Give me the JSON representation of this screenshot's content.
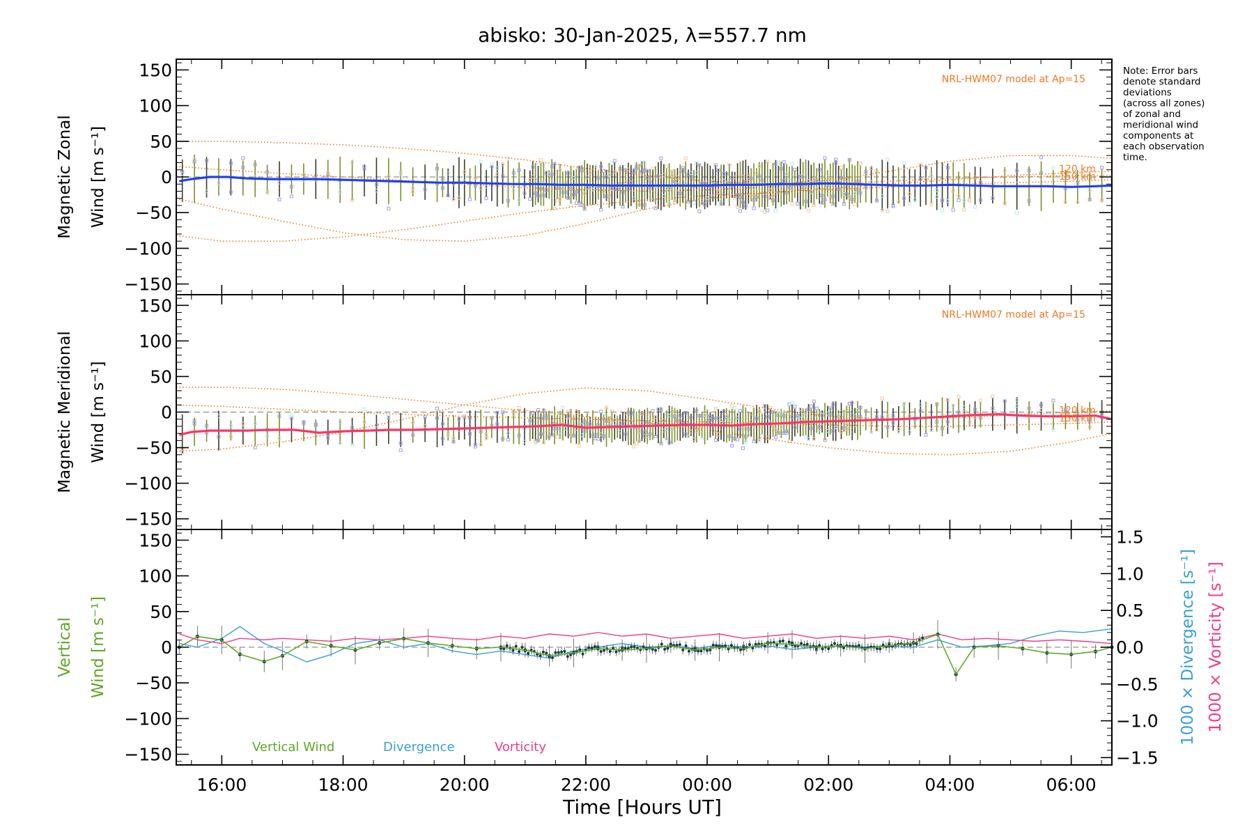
{
  "colors": {
    "axis": "#000000",
    "zonal_mean": "#2040f0",
    "meridional_mean": "#ff3366",
    "model": "#f07820",
    "vertical": "#5fa826",
    "divergence": "#3a9fd6",
    "vorticity": "#ef3a8a",
    "lavender": "#a0a0e0"
  },
  "chart_data": {
    "type": "line",
    "title": "abisko: 30-Jan-2025, λ=557.7 nm",
    "xlabel": "Time [Hours UT]",
    "x_unit": "hours since 00:00 UT 30-Jan-2025",
    "xlim": [
      15.25,
      30.67
    ],
    "x_ticks": [
      16,
      18,
      20,
      22,
      24,
      26,
      28,
      30
    ],
    "x_tick_labels": [
      "16:00",
      "18:00",
      "20:00",
      "22:00",
      "00:00",
      "02:00",
      "04:00",
      "06:00"
    ],
    "note_lines": [
      "Note: Error bars",
      "denote standard",
      "deviations",
      "(across all zones)",
      "of zonal and",
      "meridional wind",
      "components at",
      "each observation",
      "time."
    ],
    "panels": [
      {
        "id": "zonal",
        "ylabel_line1": "Magnetic Zonal",
        "ylabel_line2": "Wind [m s⁻¹]",
        "ylim": [
          -165,
          165
        ],
        "y_ticks": [
          150,
          100,
          50,
          0,
          -50,
          -100,
          -150
        ],
        "model_label": "NRL-HWM07 model at Ap=15",
        "model_alt_labels": [
          "120 km",
          "150 km"
        ],
        "series": [
          {
            "name": "Mean zonal wind",
            "x": [
              15.3,
              15.5,
              15.8,
              16.1,
              16.4,
              16.8,
              17.2,
              17.6,
              18.0,
              18.4,
              18.8,
              19.2,
              19.6,
              20.0,
              20.4,
              20.8,
              21.2,
              21.6,
              22.0,
              22.4,
              22.8,
              23.2,
              23.6,
              24.0,
              24.4,
              24.8,
              25.2,
              25.6,
              26.0,
              26.4,
              26.8,
              27.2,
              27.6,
              28.0,
              28.4,
              28.8,
              29.2,
              29.6,
              30.0,
              30.4,
              30.67
            ],
            "y": [
              -6,
              -3,
              0,
              0,
              -2,
              -3,
              -3,
              -3,
              -4,
              -5,
              -6,
              -7,
              -8,
              -8,
              -9,
              -10,
              -10,
              -11,
              -11,
              -12,
              -12,
              -12,
              -12,
              -12,
              -11,
              -11,
              -10,
              -10,
              -9,
              -10,
              -11,
              -12,
              -12,
              -11,
              -12,
              -13,
              -13,
              -13,
              -14,
              -13,
              -12
            ]
          },
          {
            "name": "HWM 120 km upper",
            "x": [
              15.25,
              16,
              17,
              18,
              19,
              20,
              21,
              22,
              23,
              24,
              25,
              26,
              27,
              28,
              29,
              30,
              30.67
            ],
            "y": [
              50,
              50,
              48,
              45,
              40,
              33,
              24,
              12,
              2,
              -6,
              -10,
              -5,
              8,
              22,
              30,
              30,
              26
            ]
          },
          {
            "name": "HWM 120 km lower",
            "x": [
              15.25,
              16,
              17,
              18,
              19,
              20,
              21,
              22,
              23,
              24,
              25,
              26,
              27,
              28,
              29,
              30,
              30.67
            ],
            "y": [
              -30,
              -45,
              -62,
              -78,
              -88,
              -90,
              -82,
              -65,
              -45,
              -30,
              -22,
              -16,
              -10,
              -4,
              2,
              6,
              8
            ]
          },
          {
            "name": "HWM 150 km upper",
            "x": [
              15.25,
              16,
              17,
              18,
              19,
              20,
              21,
              22,
              23,
              24,
              25,
              26,
              27,
              28,
              29,
              30,
              30.67
            ],
            "y": [
              -82,
              -90,
              -90,
              -84,
              -74,
              -62,
              -50,
              -40,
              -32,
              -26,
              -22,
              -18,
              -14,
              -10,
              -8,
              -6,
              -4
            ]
          },
          {
            "name": "HWM 150 km lower",
            "x": [
              15.25,
              16,
              17,
              18,
              19,
              20,
              21,
              22,
              23,
              24,
              25,
              26,
              27,
              28,
              29,
              30,
              30.67
            ],
            "y": [
              15,
              10,
              5,
              0,
              -5,
              -10,
              -15,
              -18,
              -20,
              -18,
              -14,
              -10,
              -6,
              -2,
              0,
              2,
              2
            ]
          }
        ]
      },
      {
        "id": "meridional",
        "ylabel_line1": "Magnetic Meridional",
        "ylabel_line2": "Wind [m s⁻¹]",
        "ylim": [
          -165,
          165
        ],
        "y_ticks": [
          150,
          100,
          50,
          0,
          -50,
          -100,
          -150
        ],
        "model_label": "NRL-HWM07 model at Ap=15",
        "model_alt_labels": [
          "120 km",
          "150 km"
        ],
        "series": [
          {
            "name": "Mean meridional wind",
            "x": [
              15.3,
              15.5,
              15.8,
              16.1,
              16.4,
              16.8,
              17.2,
              17.6,
              18.0,
              18.4,
              18.8,
              19.2,
              19.6,
              20.0,
              20.4,
              20.8,
              21.2,
              21.6,
              22.0,
              22.4,
              22.8,
              23.2,
              23.6,
              24.0,
              24.4,
              24.8,
              25.2,
              25.6,
              26.0,
              26.4,
              26.8,
              27.2,
              27.6,
              28.0,
              28.4,
              28.8,
              29.2,
              29.6,
              30.0,
              30.4,
              30.67
            ],
            "y": [
              -32,
              -28,
              -26,
              -26,
              -26,
              -25,
              -25,
              -29,
              -27,
              -26,
              -25,
              -25,
              -24,
              -23,
              -22,
              -21,
              -20,
              -18,
              -22,
              -21,
              -20,
              -19,
              -18,
              -18,
              -19,
              -17,
              -16,
              -14,
              -13,
              -12,
              -11,
              -10,
              -8,
              -6,
              -4,
              -3,
              -5,
              -6,
              -6,
              -5,
              -10
            ]
          },
          {
            "name": "HWM 120 km upper",
            "x": [
              15.25,
              16,
              17,
              18,
              19,
              20,
              21,
              22,
              23,
              24,
              25,
              26,
              27,
              28,
              29,
              30,
              30.67
            ],
            "y": [
              35,
              35,
              32,
              26,
              18,
              10,
              2,
              -6,
              -15,
              -25,
              -38,
              -50,
              -58,
              -60,
              -55,
              -42,
              -30
            ]
          },
          {
            "name": "HWM 120 km lower",
            "x": [
              15.25,
              16,
              17,
              18,
              19,
              20,
              21,
              22,
              23,
              24,
              25,
              26,
              27,
              28,
              29,
              30,
              30.67
            ],
            "y": [
              -55,
              -52,
              -42,
              -28,
              -10,
              10,
              26,
              34,
              30,
              18,
              5,
              -6,
              -10,
              -8,
              -4,
              0,
              2
            ]
          },
          {
            "name": "HWM 150 km",
            "x": [
              15.25,
              16,
              17,
              18,
              19,
              20,
              21,
              22,
              23,
              24,
              25,
              26,
              27,
              28,
              29,
              30,
              30.67
            ],
            "y": [
              10,
              8,
              4,
              0,
              -3,
              -6,
              -8,
              -10,
              -12,
              -14,
              -16,
              -18,
              -20,
              -20,
              -18,
              -16,
              -14
            ]
          }
        ]
      },
      {
        "id": "vertical",
        "ylabel_line1": "Vertical",
        "ylabel_line2": "Wind [m s⁻¹]",
        "ylim": [
          -165,
          165
        ],
        "y_ticks": [
          150,
          100,
          50,
          0,
          -50,
          -100,
          -150
        ],
        "right_axis": {
          "ylim": [
            -1.6,
            1.6
          ],
          "y_ticks": [
            1.5,
            1.0,
            0.5,
            0.0,
            -0.5,
            -1.0,
            -1.5
          ],
          "y_tick_labels": [
            "1.5",
            "1.0",
            "0.5",
            "0.0",
            "−0.5",
            "−1.0",
            "−1.5"
          ],
          "label_divergence": "1000 × Divergence [s⁻¹]",
          "label_vorticity": "1000 × Vorticity [s⁻¹]"
        },
        "legend": [
          "Vertical Wind",
          "Divergence",
          "Vorticity"
        ],
        "series": [
          {
            "name": "Vertical Wind",
            "x": [
              15.3,
              15.6,
              16.0,
              16.3,
              16.7,
              17.0,
              17.4,
              17.8,
              18.2,
              18.6,
              19.0,
              19.4,
              19.8,
              20.2,
              20.6,
              21.0,
              21.4,
              21.8,
              22.2,
              22.6,
              23.0,
              23.4,
              23.8,
              24.2,
              24.6,
              25.0,
              25.4,
              25.8,
              26.2,
              26.6,
              27.0,
              27.4,
              27.8,
              28.1,
              28.4,
              28.8,
              29.2,
              29.6,
              30.0,
              30.4,
              30.67
            ],
            "y": [
              0,
              15,
              10,
              -10,
              -20,
              -12,
              8,
              2,
              -4,
              6,
              12,
              6,
              2,
              -2,
              0,
              -4,
              -12,
              -8,
              -2,
              -4,
              -2,
              2,
              -4,
              0,
              -2,
              6,
              4,
              0,
              2,
              -2,
              2,
              6,
              18,
              -38,
              0,
              2,
              -2,
              -8,
              -10,
              -6,
              0
            ]
          },
          {
            "name": "Divergence",
            "x": [
              15.3,
              15.6,
              16.0,
              16.3,
              16.7,
              17.0,
              17.4,
              17.8,
              18.2,
              18.6,
              19.0,
              19.4,
              19.8,
              20.2,
              20.6,
              21.0,
              21.4,
              21.8,
              22.2,
              22.6,
              23.0,
              23.4,
              23.8,
              24.2,
              24.6,
              25.0,
              25.4,
              25.8,
              26.2,
              26.6,
              27.0,
              27.4,
              27.8,
              28.2,
              28.6,
              29.0,
              29.4,
              29.8,
              30.2,
              30.67
            ],
            "y": [
              0.05,
              0.0,
              0.12,
              0.28,
              0.05,
              -0.05,
              -0.2,
              -0.1,
              0.05,
              0.1,
              0.0,
              0.05,
              -0.05,
              -0.1,
              -0.05,
              -0.1,
              -0.15,
              -0.05,
              0.0,
              0.05,
              0.0,
              0.02,
              -0.02,
              0.03,
              0.0,
              0.02,
              -0.03,
              0.0,
              0.02,
              0.0,
              0.02,
              0.0,
              0.1,
              0.0,
              0.02,
              0.05,
              0.15,
              0.22,
              0.2,
              0.25
            ]
          },
          {
            "name": "Vorticity",
            "x": [
              15.3,
              15.6,
              16.0,
              16.3,
              16.7,
              17.0,
              17.4,
              17.8,
              18.2,
              18.6,
              19.0,
              19.4,
              19.8,
              20.2,
              20.6,
              21.0,
              21.4,
              21.8,
              22.2,
              22.6,
              23.0,
              23.4,
              23.8,
              24.2,
              24.6,
              25.0,
              25.4,
              25.8,
              26.2,
              26.6,
              27.0,
              27.4,
              27.8,
              28.2,
              28.6,
              29.0,
              29.4,
              29.8,
              30.2,
              30.67
            ],
            "y": [
              0.18,
              0.1,
              0.05,
              0.12,
              0.1,
              0.12,
              0.1,
              0.08,
              0.12,
              0.1,
              0.12,
              0.15,
              0.12,
              0.1,
              0.15,
              0.12,
              0.18,
              0.15,
              0.2,
              0.15,
              0.18,
              0.12,
              0.15,
              0.18,
              0.12,
              0.15,
              0.18,
              0.12,
              0.15,
              0.12,
              0.15,
              0.1,
              0.18,
              0.1,
              0.12,
              0.1,
              0.08,
              0.1,
              0.08,
              0.05
            ]
          }
        ]
      }
    ]
  }
}
